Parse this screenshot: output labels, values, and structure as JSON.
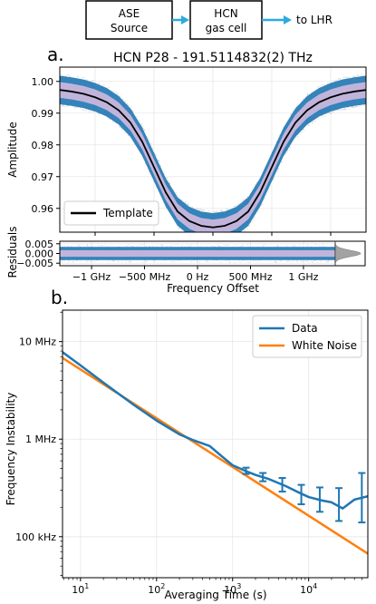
{
  "diagram": {
    "boxes": [
      {
        "line1": "ASE",
        "line2": "Source"
      },
      {
        "line1": "HCN",
        "line2": "gas cell"
      }
    ],
    "output_label": "to LHR",
    "arrow_color": "#29abe2"
  },
  "colors": {
    "data_blue": "#1f77b4",
    "band_light": "#c9b6dc",
    "orange": "#ff7f0e",
    "template": "#000000",
    "scatter_gray": "#8c8c8c"
  },
  "chart_data": [
    {
      "panel_letter": "a.",
      "type": "line",
      "title": "HCN P28 - 191.5114832(2) THz",
      "ylabel": "Amplitude",
      "xlabel": "",
      "xlim": [
        -1.3,
        1.3
      ],
      "ylim": [
        0.9525,
        1.0045
      ],
      "yticks": [
        0.96,
        0.97,
        0.98,
        0.99,
        1.0
      ],
      "ytick_labels": [
        "0.96",
        "0.97",
        "0.98",
        "0.99",
        "1.00"
      ],
      "grid": true,
      "legend": {
        "position": "bottom-left",
        "entries": [
          "Template"
        ]
      },
      "series": [
        {
          "name": "Template",
          "x": [
            -1.3,
            -1.2,
            -1.1,
            -1.0,
            -0.9,
            -0.8,
            -0.7,
            -0.6,
            -0.5,
            -0.4,
            -0.3,
            -0.2,
            -0.1,
            0.0,
            0.1,
            0.2,
            0.3,
            0.4,
            0.5,
            0.6,
            0.7,
            0.8,
            0.9,
            1.0,
            1.1,
            1.2,
            1.3
          ],
          "y": [
            0.9973,
            0.9968,
            0.9961,
            0.995,
            0.9934,
            0.9909,
            0.987,
            0.981,
            0.973,
            0.965,
            0.959,
            0.956,
            0.9545,
            0.954,
            0.9545,
            0.956,
            0.959,
            0.965,
            0.973,
            0.981,
            0.987,
            0.9909,
            0.9934,
            0.995,
            0.9961,
            0.9968,
            0.9973
          ]
        }
      ],
      "noise_band_width": 0.0045
    },
    {
      "type": "line",
      "ylabel": "Residuals",
      "xlabel": "Frequency Offset",
      "xlim": [
        -1.3,
        1.3
      ],
      "ylim": [
        -0.0063,
        0.0063
      ],
      "yticks": [
        -0.005,
        0.0,
        0.005
      ],
      "ytick_labels": [
        "−0.005",
        "0.000",
        "0.005"
      ],
      "xticks": [
        -1.0,
        -0.5,
        0.0,
        0.5,
        1.0
      ],
      "xtick_labels": [
        "−1 GHz",
        "−500 MHz",
        "0 Hz",
        "500 MHz",
        "1 GHz"
      ],
      "grid": true,
      "residual_band_width": 0.0034,
      "histogram": {
        "side": "right",
        "sigma": 0.0016
      }
    },
    {
      "panel_letter": "b.",
      "type": "line",
      "xscale": "log",
      "yscale": "log",
      "xlabel": "Averaging Time (s)",
      "ylabel": "Frequency Instability",
      "xlim": [
        5.8,
        60000
      ],
      "ylim": [
        38000,
        21000000
      ],
      "xticks": [
        10,
        100,
        1000,
        10000
      ],
      "xtick_labels": [
        "10^1",
        "10^2",
        "10^3",
        "10^4"
      ],
      "yticks": [
        100000,
        1000000,
        10000000
      ],
      "ytick_labels": [
        "100 kHz",
        "1 MHz",
        "10 MHz"
      ],
      "grid": true,
      "legend": {
        "position": "top-right",
        "entries": [
          "Data",
          "White Noise"
        ]
      },
      "series": [
        {
          "name": "Data",
          "x": [
            5.8,
            10,
            20,
            50,
            100,
            200,
            300,
            500,
            700,
            1000,
            1500,
            2000,
            3000,
            5000,
            7000,
            10000,
            15000,
            20000,
            28000,
            40000,
            60000
          ],
          "y": [
            7800000,
            5700000,
            3800000,
            2250000,
            1550000,
            1120000,
            980000,
            850000,
            680000,
            540000,
            470000,
            430000,
            390000,
            330000,
            290000,
            255000,
            235000,
            225000,
            195000,
            240000,
            260000
          ]
        },
        {
          "name": "White Noise",
          "x": [
            5.8,
            60000
          ],
          "y": [
            6800000,
            67000
          ]
        }
      ],
      "error_bars": [
        {
          "x": 1500,
          "y": 470000,
          "lo": 440000,
          "hi": 510000
        },
        {
          "x": 2500,
          "y": 410000,
          "lo": 370000,
          "hi": 450000
        },
        {
          "x": 4500,
          "y": 340000,
          "lo": 290000,
          "hi": 400000
        },
        {
          "x": 8000,
          "y": 270000,
          "lo": 215000,
          "hi": 340000
        },
        {
          "x": 14000,
          "y": 235000,
          "lo": 180000,
          "hi": 320000
        },
        {
          "x": 25000,
          "y": 200000,
          "lo": 145000,
          "hi": 315000
        },
        {
          "x": 50000,
          "y": 250000,
          "lo": 140000,
          "hi": 450000
        }
      ]
    }
  ]
}
